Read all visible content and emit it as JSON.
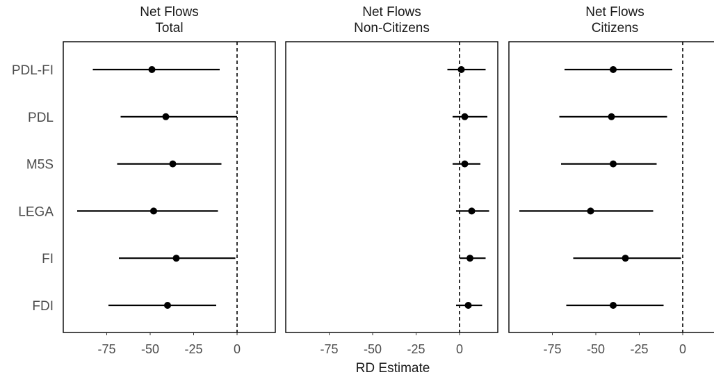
{
  "chart_data": {
    "type": "scatter",
    "subtype": "coefficient-plot-with-confidence-intervals",
    "xlabel": "RD Estimate",
    "ylabel": "",
    "categories": [
      "PDL-FI",
      "PDL",
      "M5S",
      "LEGA",
      "FI",
      "FDI"
    ],
    "xlim": [
      -100,
      20
    ],
    "x_ticks": [
      -75,
      -50,
      -25,
      0
    ],
    "x_tick_labels": [
      "-75",
      "-50",
      "-25",
      "0"
    ],
    "reference_line": {
      "x": 0,
      "style": "dashed"
    },
    "grid": false,
    "legend": "none",
    "colors": {
      "point": "#000000",
      "line": "#000000",
      "frame": "#000000"
    },
    "panels": [
      {
        "title_line1": "Net Flows",
        "title_line2": "Total",
        "estimates": [
          {
            "category": "PDL-FI",
            "estimate": -49,
            "lower": -83,
            "upper": -10
          },
          {
            "category": "PDL",
            "estimate": -41,
            "lower": -67,
            "upper": 0
          },
          {
            "category": "M5S",
            "estimate": -37,
            "lower": -69,
            "upper": -9
          },
          {
            "category": "LEGA",
            "estimate": -48,
            "lower": -92,
            "upper": -11
          },
          {
            "category": "FI",
            "estimate": -35,
            "lower": -68,
            "upper": -1
          },
          {
            "category": "FDI",
            "estimate": -40,
            "lower": -74,
            "upper": -12
          }
        ]
      },
      {
        "title_line1": "Net Flows",
        "title_line2": "Non-Citizens",
        "estimates": [
          {
            "category": "PDL-FI",
            "estimate": 1,
            "lower": -7,
            "upper": 15
          },
          {
            "category": "PDL",
            "estimate": 3,
            "lower": -4,
            "upper": 16
          },
          {
            "category": "M5S",
            "estimate": 3,
            "lower": -4,
            "upper": 12
          },
          {
            "category": "LEGA",
            "estimate": 7,
            "lower": -2,
            "upper": 17
          },
          {
            "category": "FI",
            "estimate": 6,
            "lower": 0,
            "upper": 15
          },
          {
            "category": "FDI",
            "estimate": 5,
            "lower": -2,
            "upper": 13
          }
        ]
      },
      {
        "title_line1": "Net Flows",
        "title_line2": "Citizens",
        "estimates": [
          {
            "category": "PDL-FI",
            "estimate": -40,
            "lower": -68,
            "upper": -6
          },
          {
            "category": "PDL",
            "estimate": -41,
            "lower": -71,
            "upper": -9
          },
          {
            "category": "M5S",
            "estimate": -40,
            "lower": -70,
            "upper": -15
          },
          {
            "category": "LEGA",
            "estimate": -53,
            "lower": -94,
            "upper": -17
          },
          {
            "category": "FI",
            "estimate": -33,
            "lower": -63,
            "upper": -1
          },
          {
            "category": "FDI",
            "estimate": -40,
            "lower": -67,
            "upper": -11
          }
        ]
      }
    ]
  }
}
